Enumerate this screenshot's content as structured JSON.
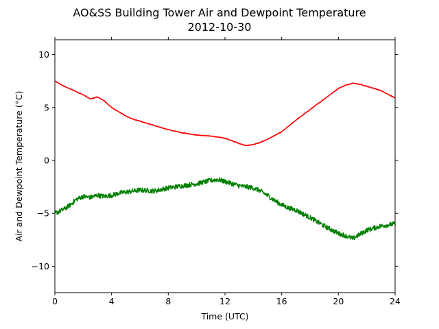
{
  "chart_data": {
    "type": "line",
    "title": "AO&SS Building Tower Air and Dewpoint Temperature",
    "subtitle": "2012-10-30",
    "xlabel": "Time (UTC)",
    "ylabel": "Air and Dewpoint Temperature (°C)",
    "xlim": [
      0,
      24
    ],
    "ylim": [
      -12.5,
      11.4
    ],
    "xticks": [
      0,
      4,
      8,
      12,
      16,
      20,
      24
    ],
    "yticks": [
      -10,
      -5,
      0,
      5,
      10
    ],
    "grid": false,
    "legend": "none",
    "series": [
      {
        "color": "#ff0000",
        "x": [
          0,
          0.5,
          1,
          1.5,
          2,
          2.5,
          3,
          3.5,
          4,
          4.5,
          5,
          5.5,
          6,
          7,
          8,
          9,
          10,
          11,
          12,
          13,
          13.5,
          14,
          14.5,
          15,
          16,
          17,
          18,
          19,
          20,
          20.5,
          21,
          21.5,
          22,
          23,
          24
        ],
        "values": [
          7.5,
          7.1,
          6.8,
          6.5,
          6.2,
          5.8,
          6.0,
          5.6,
          5.0,
          4.6,
          4.2,
          3.9,
          3.7,
          3.3,
          2.9,
          2.6,
          2.4,
          2.3,
          2.1,
          1.6,
          1.4,
          1.5,
          1.7,
          2.0,
          2.7,
          3.8,
          4.8,
          5.8,
          6.8,
          7.1,
          7.3,
          7.2,
          7.0,
          6.6,
          5.9
        ]
      },
      {
        "color": "#008000",
        "x": [
          0,
          0.5,
          1,
          1.5,
          2,
          2.5,
          3,
          3.5,
          4,
          4.5,
          5,
          5.5,
          6,
          7,
          8,
          9,
          10,
          11,
          11.5,
          12,
          13,
          14,
          14.5,
          15,
          15.5,
          16,
          16.5,
          17,
          18,
          19,
          20,
          20.5,
          21,
          21.5,
          22,
          23,
          24
        ],
        "values": [
          -5.0,
          -4.7,
          -4.3,
          -3.7,
          -3.4,
          -3.5,
          -3.3,
          -3.4,
          -3.3,
          -3.1,
          -3.0,
          -2.9,
          -2.8,
          -2.9,
          -2.6,
          -2.4,
          -2.2,
          -1.9,
          -1.8,
          -2.0,
          -2.4,
          -2.6,
          -2.9,
          -3.3,
          -3.8,
          -4.2,
          -4.5,
          -4.7,
          -5.4,
          -6.2,
          -6.9,
          -7.1,
          -7.4,
          -7.0,
          -6.6,
          -6.2,
          -6.0
        ]
      }
    ]
  }
}
